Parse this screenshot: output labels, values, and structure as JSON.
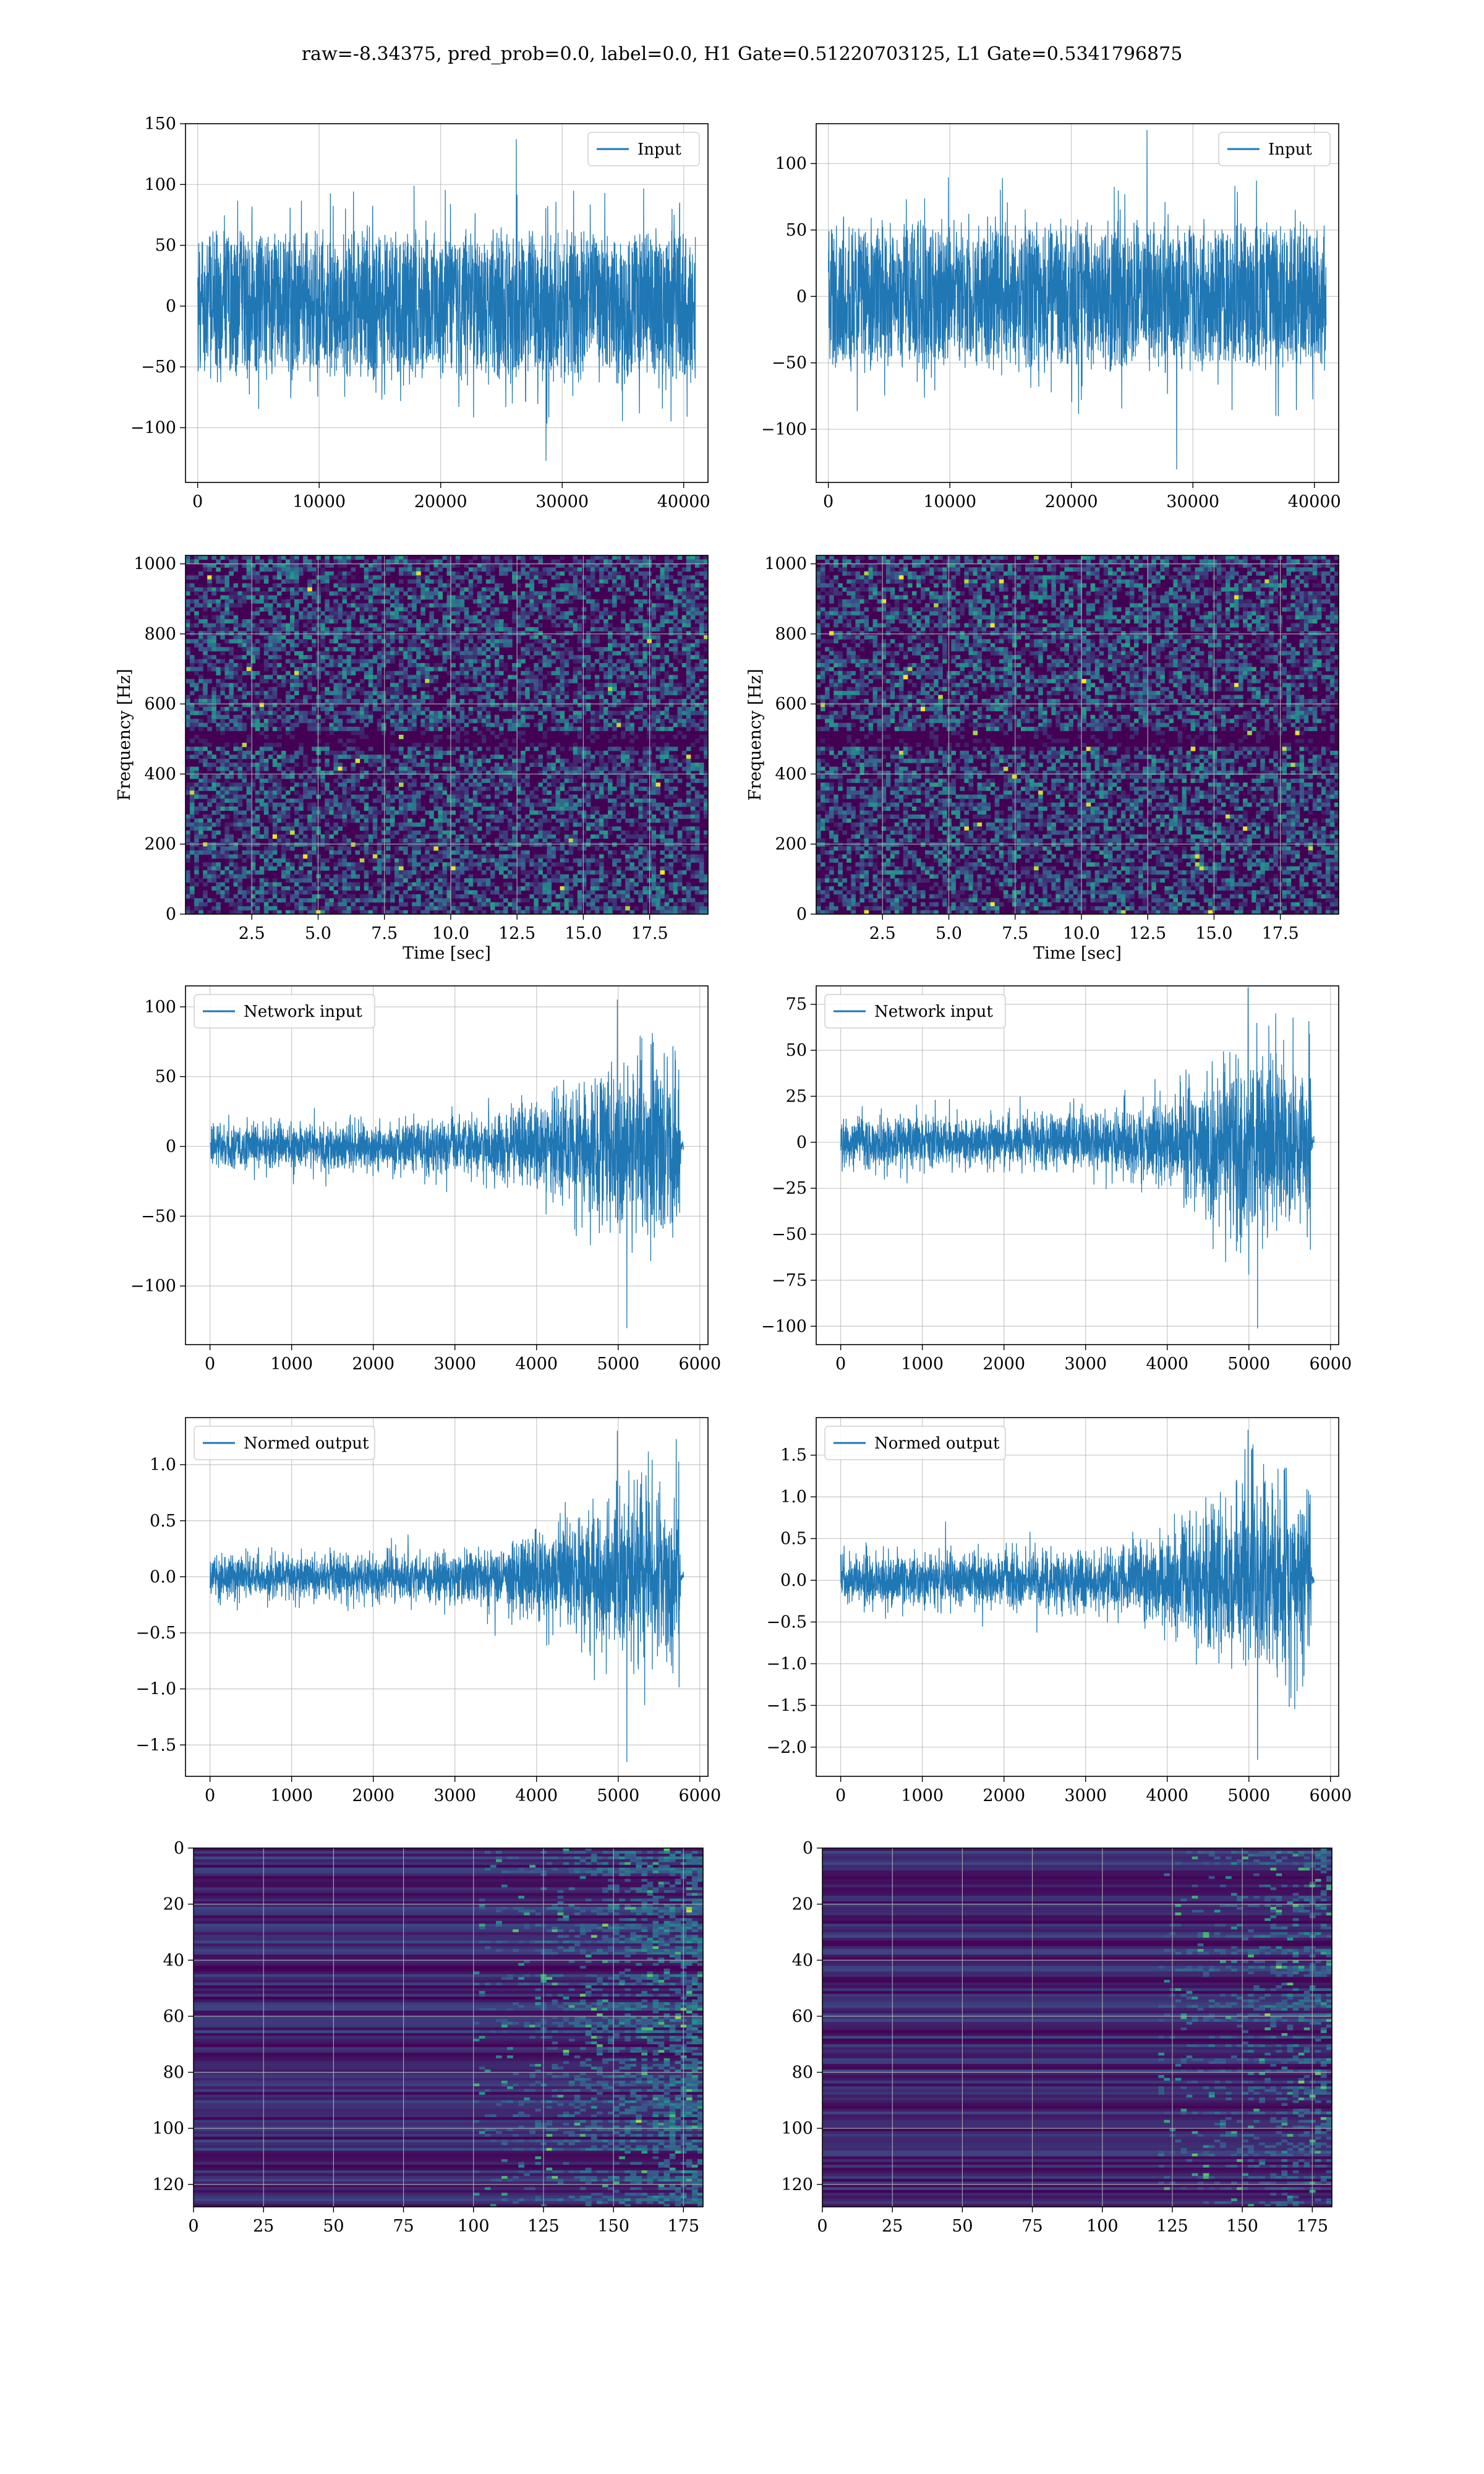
{
  "figure": {
    "title": "raw=-8.34375, pred_prob=0.0, label=0.0, H1 Gate=0.51220703125, L1 Gate=0.5341796875"
  },
  "colors": {
    "line": "#1f77b4",
    "grid": "#b0b0b0",
    "viridis_dark": "#440154",
    "viridis_mid": "#21908d",
    "viridis_light": "#fde725"
  },
  "chart_data": [
    {
      "type": "line",
      "panel": "row1-left",
      "legend": "Input",
      "legend_position": "upper right",
      "xlim": [
        -1000,
        42000
      ],
      "ylim": [
        -145,
        150
      ],
      "xticks": [
        0,
        10000,
        20000,
        30000,
        40000
      ],
      "yticks": [
        -100,
        -50,
        0,
        50,
        100,
        150
      ],
      "series": [
        {
          "name": "Input",
          "x_range": [
            0,
            40960
          ],
          "envelope_min": -127,
          "envelope_max": 137,
          "typical_abs": 55
        }
      ],
      "grid": true,
      "xlabel": "",
      "ylabel": ""
    },
    {
      "type": "line",
      "panel": "row1-right",
      "legend": "Input",
      "legend_position": "upper right",
      "xlim": [
        -1000,
        42000
      ],
      "ylim": [
        -140,
        130
      ],
      "xticks": [
        0,
        10000,
        20000,
        30000,
        40000
      ],
      "yticks": [
        -100,
        -50,
        0,
        50,
        100
      ],
      "series": [
        {
          "name": "Input",
          "x_range": [
            0,
            40960
          ],
          "envelope_min": -130,
          "envelope_max": 125,
          "typical_abs": 50
        }
      ],
      "grid": true,
      "xlabel": "",
      "ylabel": ""
    },
    {
      "type": "heatmap",
      "panel": "row2-left",
      "xlabel": "Time [sec]",
      "ylabel": "Frequency [Hz]",
      "xlim": [
        0,
        19.7
      ],
      "ylim": [
        0,
        1024
      ],
      "xticks": [
        2.5,
        5.0,
        7.5,
        10.0,
        12.5,
        15.0,
        17.5
      ],
      "yticks": [
        0,
        200,
        400,
        600,
        800,
        1000
      ],
      "colormap": "viridis",
      "notes": "spectrogram noise, dark band near 500 Hz",
      "grid": true
    },
    {
      "type": "heatmap",
      "panel": "row2-right",
      "xlabel": "Time [sec]",
      "ylabel": "Frequency [Hz]",
      "xlim": [
        0,
        19.7
      ],
      "ylim": [
        0,
        1024
      ],
      "xticks": [
        2.5,
        5.0,
        7.5,
        10.0,
        12.5,
        15.0,
        17.5
      ],
      "yticks": [
        0,
        200,
        400,
        600,
        800,
        1000
      ],
      "colormap": "viridis",
      "notes": "spectrogram noise, dark band near 500 Hz",
      "grid": true
    },
    {
      "type": "line",
      "panel": "row3-left",
      "legend": "Network input",
      "legend_position": "upper left",
      "xlim": [
        -300,
        6100
      ],
      "ylim": [
        -142,
        115
      ],
      "xticks": [
        0,
        1000,
        2000,
        3000,
        4000,
        5000,
        6000
      ],
      "yticks": [
        -100,
        -50,
        0,
        50,
        100
      ],
      "series": [
        {
          "name": "Network input",
          "x_range": [
            0,
            5800
          ],
          "envelope": [
            [
              0,
              20
            ],
            [
              1000,
              22
            ],
            [
              2000,
              22
            ],
            [
              3000,
              25
            ],
            [
              3500,
              30
            ],
            [
              4000,
              45
            ],
            [
              4500,
              60
            ],
            [
              5000,
              80
            ],
            [
              5500,
              75
            ],
            [
              5750,
              70
            ],
            [
              5770,
              5
            ],
            [
              5800,
              3
            ]
          ],
          "extreme_max": 105,
          "extreme_min": -130
        }
      ],
      "grid": true,
      "xlabel": "",
      "ylabel": ""
    },
    {
      "type": "line",
      "panel": "row3-right",
      "legend": "Network input",
      "legend_position": "upper left",
      "xlim": [
        -300,
        6100
      ],
      "ylim": [
        -110,
        85
      ],
      "xticks": [
        0,
        1000,
        2000,
        3000,
        4000,
        5000,
        6000
      ],
      "yticks": [
        -100,
        -75,
        -50,
        -25,
        0,
        25,
        50,
        75
      ],
      "series": [
        {
          "name": "Network input",
          "x_range": [
            0,
            5800
          ],
          "envelope": [
            [
              0,
              18
            ],
            [
              1000,
              18
            ],
            [
              2000,
              18
            ],
            [
              3000,
              20
            ],
            [
              3500,
              25
            ],
            [
              4000,
              30
            ],
            [
              4500,
              50
            ],
            [
              5000,
              70
            ],
            [
              5500,
              65
            ],
            [
              5750,
              60
            ],
            [
              5770,
              5
            ],
            [
              5800,
              3
            ]
          ],
          "extreme_max": 84,
          "extreme_min": -101
        }
      ],
      "grid": true,
      "xlabel": "",
      "ylabel": ""
    },
    {
      "type": "line",
      "panel": "row4-left",
      "legend": "Normed output",
      "legend_position": "upper left",
      "xlim": [
        -300,
        6100
      ],
      "ylim": [
        -1.78,
        1.42
      ],
      "xticks": [
        0,
        1000,
        2000,
        3000,
        4000,
        5000,
        6000
      ],
      "yticks": [
        -1.5,
        -1.0,
        -0.5,
        0.0,
        0.5,
        1.0
      ],
      "series": [
        {
          "name": "Normed output",
          "x_range": [
            0,
            5800
          ],
          "envelope": [
            [
              0,
              0.25
            ],
            [
              1000,
              0.25
            ],
            [
              2000,
              0.27
            ],
            [
              3000,
              0.3
            ],
            [
              3500,
              0.35
            ],
            [
              4000,
              0.55
            ],
            [
              4500,
              0.75
            ],
            [
              5000,
              1.0
            ],
            [
              5500,
              0.95
            ],
            [
              5750,
              0.85
            ],
            [
              5770,
              0.06
            ],
            [
              5800,
              0.04
            ]
          ],
          "extreme_max": 1.3,
          "extreme_min": -1.65
        }
      ],
      "grid": true,
      "xlabel": "",
      "ylabel": ""
    },
    {
      "type": "line",
      "panel": "row4-right",
      "legend": "Normed output",
      "legend_position": "upper left",
      "xlim": [
        -300,
        6100
      ],
      "ylim": [
        -2.35,
        1.95
      ],
      "xticks": [
        0,
        1000,
        2000,
        3000,
        4000,
        5000,
        6000
      ],
      "yticks": [
        -2.0,
        -1.5,
        -1.0,
        -0.5,
        0.0,
        0.5,
        1.0,
        1.5
      ],
      "series": [
        {
          "name": "Normed output",
          "x_range": [
            0,
            5800
          ],
          "envelope": [
            [
              0,
              0.4
            ],
            [
              1000,
              0.4
            ],
            [
              2000,
              0.42
            ],
            [
              3000,
              0.45
            ],
            [
              3500,
              0.55
            ],
            [
              4000,
              0.7
            ],
            [
              4500,
              1.1
            ],
            [
              5000,
              1.6
            ],
            [
              5500,
              1.5
            ],
            [
              5750,
              1.3
            ],
            [
              5770,
              0.1
            ],
            [
              5800,
              0.05
            ]
          ],
          "extreme_max": 1.8,
          "extreme_min": -2.15
        }
      ],
      "grid": true,
      "xlabel": "",
      "ylabel": ""
    },
    {
      "type": "heatmap",
      "panel": "row5-left",
      "xlabel": "",
      "ylabel": "",
      "xlim": [
        0,
        182
      ],
      "ylim": [
        128,
        0
      ],
      "xticks": [
        0,
        25,
        50,
        75,
        100,
        125,
        150,
        175
      ],
      "yticks": [
        0,
        20,
        40,
        60,
        80,
        100,
        120
      ],
      "colormap": "viridis",
      "notes": "horizontal stripes; activity grows after x≈100",
      "grid": true
    },
    {
      "type": "heatmap",
      "panel": "row5-right",
      "xlabel": "",
      "ylabel": "",
      "xlim": [
        0,
        182
      ],
      "ylim": [
        128,
        0
      ],
      "xticks": [
        0,
        25,
        50,
        75,
        100,
        125,
        150,
        175
      ],
      "yticks": [
        0,
        20,
        40,
        60,
        80,
        100,
        120
      ],
      "colormap": "viridis",
      "notes": "horizontal stripes; activity grows after x≈120",
      "grid": true
    }
  ]
}
